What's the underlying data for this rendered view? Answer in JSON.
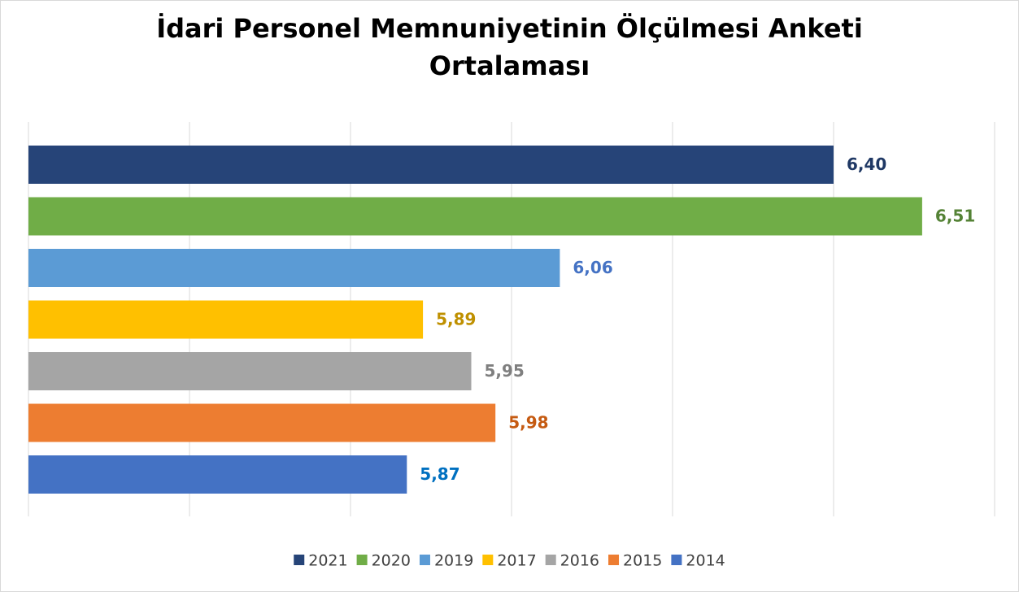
{
  "chart_data": {
    "type": "bar",
    "orientation": "horizontal",
    "title": "İdari Personel Memnuniyetinin Ölçülmesi Anketi Ortalaması",
    "xlim": [
      5.4,
      6.6
    ],
    "xticks": [
      5.4,
      5.6,
      5.8,
      6.0,
      6.2,
      6.4,
      6.6
    ],
    "grid": true,
    "legend": "bottom",
    "series": [
      {
        "name": "2021",
        "color": "#264478",
        "label_color": "#1f3864",
        "values": [
          6.4
        ],
        "value_labels": [
          "6,40"
        ]
      },
      {
        "name": "2020",
        "color": "#70ad47",
        "label_color": "#548235",
        "values": [
          6.51
        ],
        "value_labels": [
          "6,51"
        ]
      },
      {
        "name": "2019",
        "color": "#5b9bd5",
        "label_color": "#4472c4",
        "values": [
          6.06
        ],
        "value_labels": [
          "6,06"
        ]
      },
      {
        "name": "2017",
        "color": "#ffc000",
        "label_color": "#bf9000",
        "values": [
          5.89
        ],
        "value_labels": [
          "5,89"
        ]
      },
      {
        "name": "2016",
        "color": "#a5a5a5",
        "label_color": "#7f7f7f",
        "values": [
          5.95
        ],
        "value_labels": [
          "5,95"
        ]
      },
      {
        "name": "2015",
        "color": "#ed7d31",
        "label_color": "#c55a11",
        "values": [
          5.98
        ],
        "value_labels": [
          "5,98"
        ]
      },
      {
        "name": "2014",
        "color": "#4472c4",
        "label_color": "#0070c0",
        "values": [
          5.87
        ],
        "value_labels": [
          "5,87"
        ]
      }
    ]
  }
}
